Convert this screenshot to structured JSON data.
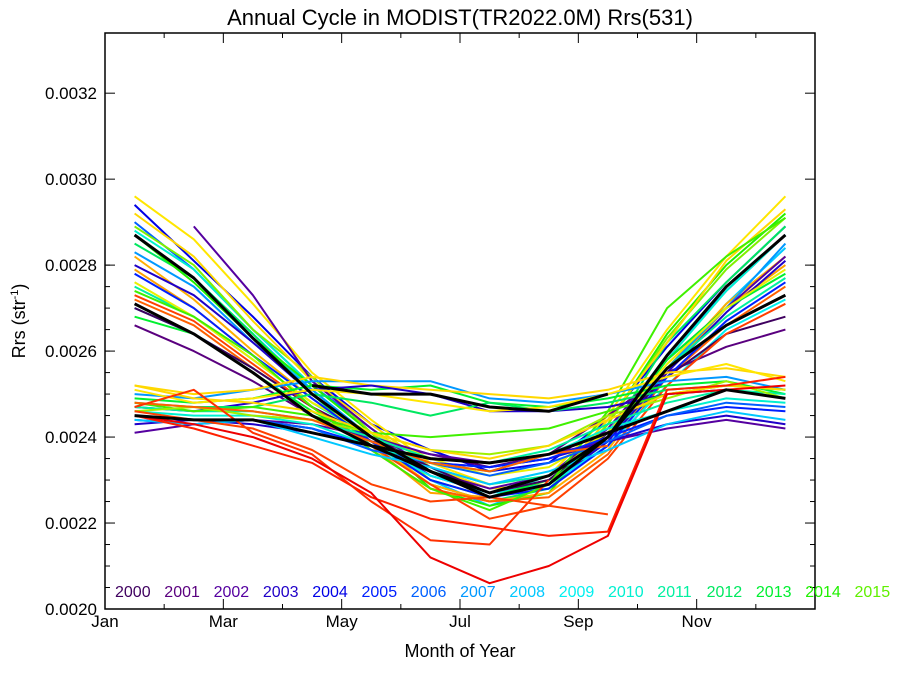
{
  "chart_data": {
    "type": "line",
    "title": "Annual Cycle in MODIST(TR2022.0M) Rrs(531)",
    "xlabel": "Month of Year",
    "ylabel_main": "Rrs (str",
    "ylabel_sup": "-1",
    "ylabel_close": ")",
    "xlim": [
      0,
      12
    ],
    "ylim": [
      0.002,
      0.00334
    ],
    "x_ticks": [
      {
        "value": 0,
        "label": "Jan"
      },
      {
        "value": 2,
        "label": "Mar"
      },
      {
        "value": 4,
        "label": "May"
      },
      {
        "value": 6,
        "label": "Jul"
      },
      {
        "value": 8,
        "label": "Sep"
      },
      {
        "value": 10,
        "label": "Nov"
      }
    ],
    "y_ticks": [
      {
        "value": 0.002,
        "label": "0.0020"
      },
      {
        "value": 0.0022,
        "label": "0.0022"
      },
      {
        "value": 0.0024,
        "label": "0.0024"
      },
      {
        "value": 0.0026,
        "label": "0.0026"
      },
      {
        "value": 0.0028,
        "label": "0.0028"
      },
      {
        "value": 0.003,
        "label": "0.0030"
      },
      {
        "value": 0.0032,
        "label": "0.0032"
      }
    ],
    "x": [
      0.5,
      1.5,
      2.5,
      3.5,
      4.5,
      5.5,
      6.5,
      7.5,
      8.5,
      9.5,
      10.5,
      11.5
    ],
    "legend": [
      {
        "label": "2000",
        "color": "#3f005f"
      },
      {
        "label": "2001",
        "color": "#5a007f"
      },
      {
        "label": "2002",
        "color": "#5500a0"
      },
      {
        "label": "2003",
        "color": "#2000c8"
      },
      {
        "label": "2004",
        "color": "#0000e6"
      },
      {
        "label": "2005",
        "color": "#0020ff"
      },
      {
        "label": "2006",
        "color": "#0060ff"
      },
      {
        "label": "2007",
        "color": "#0098ff"
      },
      {
        "label": "2008",
        "color": "#00c8ff"
      },
      {
        "label": "2009",
        "color": "#00f0f0"
      },
      {
        "label": "2010",
        "color": "#00f0d0"
      },
      {
        "label": "2011",
        "color": "#00f0a0"
      },
      {
        "label": "2012",
        "color": "#00e860"
      },
      {
        "label": "2013",
        "color": "#00f030"
      },
      {
        "label": "2014",
        "color": "#20f000"
      },
      {
        "label": "2015",
        "color": "#60f000"
      }
    ],
    "series": [
      {
        "color": "#0000e6",
        "values": [
          0.00294,
          0.00281,
          0.00268,
          0.00254,
          0.00243,
          0.00237,
          0.00232,
          0.00234,
          0.00244,
          0.00261,
          0.00276,
          0.00289
        ]
      },
      {
        "color": "#0060ff",
        "values": [
          0.0029,
          0.00279,
          0.00265,
          0.00252,
          0.00242,
          0.00232,
          0.00227,
          0.0023,
          0.00241,
          0.00259,
          0.00274,
          0.00287
        ]
      },
      {
        "color": "#00c8ff",
        "values": [
          0.00287,
          0.00277,
          0.00264,
          0.00251,
          0.0024,
          0.0023,
          0.00224,
          0.00229,
          0.00238,
          0.00255,
          0.00271,
          0.00284
        ]
      },
      {
        "color": "#00f0d0",
        "values": [
          0.00288,
          0.00279,
          0.00265,
          0.00252,
          0.00241,
          0.00233,
          0.00226,
          0.00231,
          0.00241,
          0.00258,
          0.00274,
          0.00287
        ]
      },
      {
        "color": "#00e860",
        "values": [
          0.00285,
          0.00277,
          0.00264,
          0.0025,
          0.00238,
          0.00229,
          0.00225,
          0.00228,
          0.0024,
          0.00262,
          0.00276,
          0.00289
        ]
      },
      {
        "color": "#20f000",
        "values": [
          0.00287,
          0.00276,
          0.00263,
          0.00252,
          0.00241,
          0.00228,
          0.00224,
          0.00227,
          0.00243,
          0.00264,
          0.0028,
          0.00292
        ]
      },
      {
        "color": "#80f000",
        "values": [
          0.00289,
          0.0028,
          0.00265,
          0.00254,
          0.00241,
          0.0023,
          0.00226,
          0.00229,
          0.00243,
          0.00263,
          0.00279,
          0.00291
        ]
      },
      {
        "color": "#ffd800",
        "values": [
          0.00292,
          0.00282,
          0.00267,
          0.00253,
          0.00243,
          0.00233,
          0.00228,
          0.00229,
          0.00244,
          0.00262,
          0.00281,
          0.00293
        ]
      },
      {
        "color": "#ffe600",
        "values": [
          0.00296,
          0.00286,
          0.00271,
          0.00255,
          0.00244,
          0.00234,
          0.00229,
          0.00231,
          0.00245,
          0.00265,
          0.00282,
          0.00296
        ]
      },
      {
        "color": "#ffb000",
        "values": [
          0.00282,
          0.00272,
          0.0026,
          0.00249,
          0.00239,
          0.00229,
          0.00225,
          0.00227,
          0.00237,
          0.00256,
          0.00271,
          0.00282
        ]
      },
      {
        "color": "#ffa000",
        "values": [
          0.00279,
          0.0027,
          0.00259,
          0.00247,
          0.00238,
          0.00227,
          0.00226,
          0.00229,
          0.00239,
          0.00255,
          0.0027,
          0.0028
        ]
      },
      {
        "color": "#ff6000",
        "values": [
          0.00272,
          0.00266,
          0.00256,
          0.00247,
          0.00237,
          0.00228,
          0.00225,
          0.00226,
          0.00236,
          0.00254,
          0.00266,
          0.00275
        ]
      },
      {
        "color": "#0098ff",
        "values": [
          0.00283,
          0.00275,
          0.00262,
          0.00251,
          0.0024,
          0.00232,
          0.00227,
          0.00229,
          0.00239,
          0.00256,
          0.0027,
          0.00285
        ]
      },
      {
        "color": "#5500a0",
        "values": [
          null,
          0.00289,
          0.00273,
          0.00253,
          0.00242,
          0.00232,
          0.00228,
          0.00231,
          0.00242,
          0.00258,
          0.0027,
          0.00282
        ]
      },
      {
        "color": "#2000c8",
        "values": [
          0.0028,
          0.00273,
          0.00262,
          0.0025,
          0.0024,
          0.00231,
          0.00227,
          0.00229,
          0.00239,
          0.00255,
          0.00269,
          0.00281
        ]
      },
      {
        "color": "#00f0f0",
        "values": [
          0.0027,
          0.00264,
          0.00256,
          0.00247,
          0.00238,
          0.00231,
          0.00227,
          0.00229,
          0.00238,
          0.00252,
          0.00265,
          0.00272
        ]
      },
      {
        "color": "#00f0a0",
        "values": [
          0.00275,
          0.00268,
          0.00258,
          0.00248,
          0.0024,
          0.00233,
          0.00229,
          0.00231,
          0.0024,
          0.00256,
          0.00268,
          0.00277
        ]
      },
      {
        "color": "#00f030",
        "values": [
          0.00268,
          0.00264,
          0.00255,
          0.00246,
          0.00239,
          0.00232,
          0.00226,
          0.0023,
          0.0024,
          0.00258,
          0.0027,
          0.00278
        ]
      },
      {
        "color": "#5a007f",
        "values": [
          0.00266,
          0.0026,
          0.00253,
          0.00245,
          0.00239,
          0.00236,
          0.00233,
          0.00236,
          0.00245,
          0.00255,
          0.00261,
          0.00265
        ]
      },
      {
        "color": "#3f005f",
        "values": [
          0.0027,
          0.00264,
          0.00256,
          0.00247,
          0.0024,
          0.00233,
          0.00227,
          0.0023,
          0.00241,
          0.00254,
          0.00264,
          0.00268
        ]
      },
      {
        "color": "#e8f000",
        "values": [
          0.00276,
          0.00268,
          0.00258,
          0.00248,
          0.00241,
          0.00235,
          0.00231,
          0.00233,
          0.00241,
          0.00257,
          0.0027,
          0.00279
        ]
      },
      {
        "color": "#ff4000",
        "values": [
          0.00273,
          0.00267,
          0.00257,
          0.00247,
          0.00238,
          0.00229,
          0.00221,
          0.00224,
          0.00235,
          0.00252,
          0.00264,
          0.00271
        ]
      },
      {
        "color": "#0020ff",
        "values": [
          0.00278,
          0.0027,
          0.00259,
          0.00249,
          0.00239,
          0.0023,
          0.00226,
          0.00228,
          0.00238,
          0.00254,
          0.00267,
          0.00276
        ]
      },
      {
        "color": "#40f000",
        "values": [
          0.00274,
          0.00268,
          0.00259,
          0.00247,
          0.00237,
          0.00228,
          0.00223,
          0.00229,
          0.00246,
          0.0027,
          0.00282,
          0.00291
        ]
      },
      {
        "color": "#0098ff",
        "values": [
          0.0025,
          0.00249,
          0.00251,
          0.00253,
          0.00253,
          0.00253,
          0.00249,
          0.00248,
          0.0025,
          0.00253,
          0.00254,
          0.00251
        ]
      },
      {
        "color": "#00f030",
        "values": [
          0.00249,
          0.00248,
          0.00249,
          0.00252,
          0.00251,
          0.00252,
          0.00248,
          0.00247,
          0.00249,
          0.00252,
          0.00253,
          0.0025
        ]
      },
      {
        "color": "#ffd800",
        "values": [
          0.00252,
          0.0025,
          0.00251,
          0.00254,
          0.00252,
          0.00251,
          0.0025,
          0.00249,
          0.00251,
          0.00255,
          0.00256,
          0.00254
        ]
      },
      {
        "color": "#2000c8",
        "values": [
          0.00247,
          0.00246,
          0.00248,
          0.00251,
          0.00252,
          0.0025,
          0.00246,
          0.00246,
          0.00247,
          0.0025,
          0.00251,
          0.00249
        ]
      },
      {
        "color": "#00e860",
        "values": [
          0.00248,
          0.00247,
          0.00247,
          0.0025,
          0.00248,
          0.00245,
          0.00248,
          0.00246,
          0.00248,
          0.00251,
          0.00252,
          0.00251
        ]
      },
      {
        "color": "#ffe600",
        "values": [
          0.00251,
          0.00248,
          0.00249,
          0.00251,
          0.0025,
          0.00248,
          0.00246,
          0.00247,
          0.0025,
          0.00254,
          0.00257,
          0.00253
        ]
      },
      {
        "color": "#5500a0",
        "values": [
          0.00241,
          0.00243,
          0.00244,
          0.00243,
          0.0024,
          0.00236,
          0.00234,
          0.00236,
          0.00239,
          0.00242,
          0.00244,
          0.00242
        ]
      },
      {
        "color": "#2000c8",
        "values": [
          0.00243,
          0.00244,
          0.00243,
          0.00241,
          0.00238,
          0.00234,
          0.00233,
          0.00235,
          0.00239,
          0.00243,
          0.00245,
          0.00243
        ]
      },
      {
        "color": "#0020ff",
        "values": [
          0.00244,
          0.00243,
          0.00244,
          0.00242,
          0.00238,
          0.00234,
          0.00233,
          0.00235,
          0.0024,
          0.00245,
          0.00247,
          0.00246
        ]
      },
      {
        "color": "#0060ff",
        "values": [
          0.00245,
          0.00244,
          0.00244,
          0.00242,
          0.00237,
          0.00234,
          0.00231,
          0.00234,
          0.00239,
          0.00245,
          0.00248,
          0.00247
        ]
      },
      {
        "color": "#00c8ff",
        "values": [
          0.00244,
          0.00243,
          0.00244,
          0.0024,
          0.00236,
          0.00233,
          0.00229,
          0.00232,
          0.00237,
          0.00243,
          0.00246,
          0.00244
        ]
      },
      {
        "color": "#00f0d0",
        "values": [
          0.00246,
          0.00245,
          0.00245,
          0.00243,
          0.00238,
          0.00234,
          0.00232,
          0.00236,
          0.00242,
          0.00246,
          0.00249,
          0.00248
        ]
      },
      {
        "color": "#00f0a0",
        "values": [
          0.00247,
          0.00246,
          0.00246,
          0.00244,
          0.0024,
          0.00235,
          0.00234,
          0.00237,
          0.00243,
          0.00248,
          0.00251,
          0.0025
        ]
      },
      {
        "color": "#40f000",
        "values": [
          0.00248,
          0.00246,
          0.00247,
          0.00245,
          0.00241,
          0.0024,
          0.00241,
          0.00242,
          0.00246,
          0.0025,
          0.00252,
          0.00251
        ]
      },
      {
        "color": "#a0f000",
        "values": [
          0.00246,
          0.00247,
          0.00245,
          0.00244,
          0.00241,
          0.00237,
          0.00236,
          0.00238,
          0.00245,
          0.00249,
          0.00253,
          0.00249
        ]
      },
      {
        "color": "#ffd800",
        "values": [
          0.00252,
          0.00249,
          0.00248,
          0.00246,
          0.00241,
          0.00237,
          0.00235,
          0.00238,
          0.00244,
          0.0025,
          0.00252,
          0.00251
        ]
      },
      {
        "color": "#ff6000",
        "values": [
          0.00248,
          0.00247,
          0.00246,
          0.00244,
          0.00239,
          0.00234,
          0.00232,
          0.00236,
          0.00238,
          null,
          null,
          null
        ]
      },
      {
        "color": "#ff3000",
        "values": [
          0.00247,
          0.00251,
          0.00241,
          0.00236,
          0.00225,
          0.00216,
          0.00215,
          0.0023,
          null,
          null,
          null,
          null
        ]
      },
      {
        "color": "#ff2000",
        "values": [
          0.00245,
          0.00242,
          0.00238,
          0.00234,
          0.00226,
          0.00221,
          0.00219,
          0.00217,
          0.00218,
          0.00251,
          0.00252,
          0.00254
        ]
      },
      {
        "color": "#ee0000",
        "values": [
          0.00245,
          0.00243,
          0.0024,
          0.00235,
          0.00227,
          0.00212,
          0.00206,
          0.0021,
          0.00217,
          0.0025,
          0.00251,
          0.00252
        ]
      },
      {
        "color": "#ff4000",
        "values": [
          0.00246,
          0.00244,
          0.00242,
          0.00237,
          0.00229,
          0.00225,
          0.00226,
          0.00224,
          0.00222,
          null,
          null,
          null
        ]
      },
      {
        "color": "#000000",
        "width": 3,
        "values": [
          0.00287,
          0.00277,
          0.00263,
          0.0025,
          0.0024,
          0.00232,
          0.00227,
          0.00231,
          0.0024,
          0.00259,
          0.00275,
          0.00287
        ]
      },
      {
        "color": "#000000",
        "width": 3,
        "values": [
          0.00271,
          0.00264,
          0.00255,
          0.00245,
          0.00238,
          0.00232,
          0.00226,
          0.00229,
          0.0024,
          0.00256,
          0.00266,
          0.00273
        ]
      },
      {
        "color": "#000000",
        "width": 3,
        "values": [
          0.00245,
          0.00244,
          0.00244,
          0.00241,
          0.00238,
          0.00235,
          0.00234,
          0.00236,
          0.00241,
          0.00246,
          0.00251,
          0.00249
        ]
      },
      {
        "color": "#000000",
        "width": 3,
        "values": [
          null,
          null,
          null,
          0.00252,
          0.0025,
          0.0025,
          0.00247,
          0.00246,
          0.0025,
          null,
          null,
          null
        ]
      }
    ]
  }
}
